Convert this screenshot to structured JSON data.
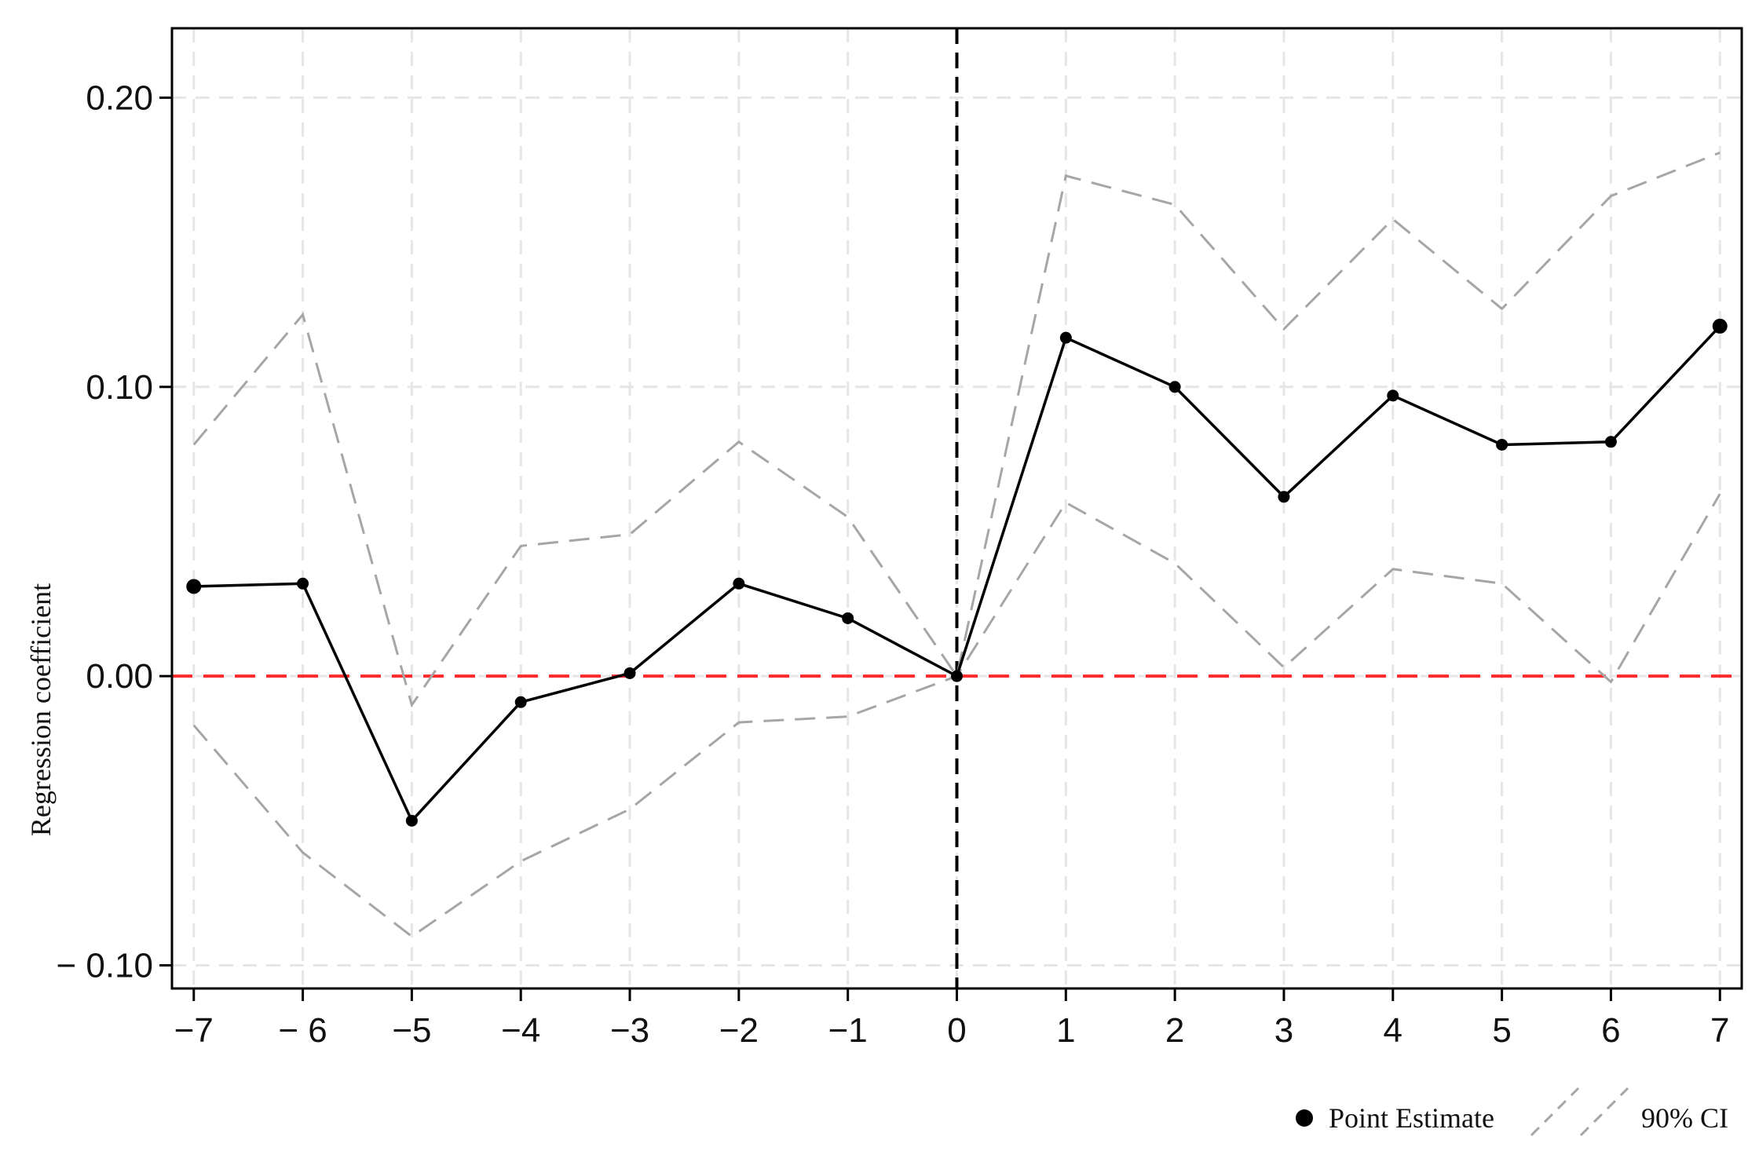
{
  "chart_data": {
    "type": "line",
    "xlabel": "",
    "ylabel": "Regression coefficient",
    "xlim": [
      -7.2,
      7.2
    ],
    "ylim": [
      -0.108,
      0.224
    ],
    "x_ticks": [
      -7,
      -6,
      -5,
      -4,
      -3,
      -2,
      -1,
      0,
      1,
      2,
      3,
      4,
      5,
      6,
      7
    ],
    "x_tick_labels": [
      "−7",
      "− 6",
      "−5",
      "−4",
      "−3",
      "−2",
      "−1",
      "0",
      "1",
      "2",
      "3",
      "4",
      "5",
      "6",
      "7"
    ],
    "y_ticks": [
      -0.1,
      0.0,
      0.1,
      0.2
    ],
    "y_tick_labels": [
      "− 0.10",
      "0.00",
      "0.10",
      "0.20"
    ],
    "grid": true,
    "x": [
      -7,
      -6,
      -5,
      -4,
      -3,
      -2,
      -1,
      0,
      1,
      2,
      3,
      4,
      5,
      6,
      7
    ],
    "series": [
      {
        "name": "Point Estimate",
        "style": "solid-markers",
        "color": "#000000",
        "values": [
          0.031,
          0.032,
          -0.05,
          -0.009,
          0.001,
          0.032,
          0.02,
          0.0,
          0.117,
          0.1,
          0.062,
          0.097,
          0.08,
          0.081,
          0.121
        ]
      },
      {
        "name": "90% CI",
        "style": "dashed",
        "color": "#a6a6a6",
        "upper": [
          0.08,
          0.125,
          -0.01,
          0.045,
          0.049,
          0.081,
          0.055,
          0.0,
          0.173,
          0.163,
          0.12,
          0.158,
          0.127,
          0.166,
          0.181
        ],
        "lower": [
          -0.017,
          -0.061,
          -0.09,
          -0.064,
          -0.046,
          -0.016,
          -0.014,
          0.0,
          0.06,
          0.039,
          0.003,
          0.037,
          0.032,
          -0.002,
          0.063
        ]
      }
    ],
    "reference_lines": [
      {
        "axis": "y",
        "value": 0,
        "color": "#ff2a2a",
        "style": "dashed"
      },
      {
        "axis": "x",
        "value": 0,
        "color": "#000000",
        "style": "dashed"
      }
    ],
    "legend": {
      "position": "bottom-right",
      "items": [
        "Point Estimate",
        "90% CI"
      ]
    }
  }
}
